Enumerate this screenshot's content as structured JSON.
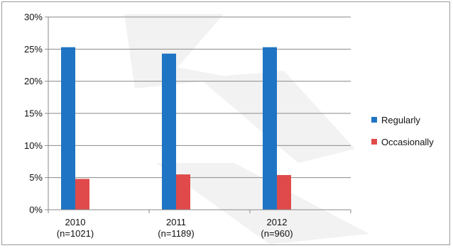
{
  "chart_data": {
    "type": "bar",
    "title": "",
    "xlabel": "",
    "ylabel": "",
    "categories": [
      [
        "2010",
        "(n=1021)"
      ],
      [
        "2011",
        "(n=1189)"
      ],
      [
        "2012",
        "(n=960)"
      ]
    ],
    "series": [
      {
        "name": "Regularly",
        "color": "#1f74c4",
        "values": [
          25.3,
          24.3,
          25.3
        ]
      },
      {
        "name": "Occasionally",
        "color": "#e04a4a",
        "values": [
          4.8,
          5.5,
          5.4
        ]
      }
    ],
    "ylim": [
      0,
      30
    ],
    "yticks": [
      0,
      5,
      10,
      15,
      20,
      25,
      30
    ],
    "ytick_labels": [
      "0%",
      "5%",
      "10%",
      "15%",
      "20%",
      "25%",
      "30%"
    ],
    "grid": true,
    "legend_position": "right"
  }
}
